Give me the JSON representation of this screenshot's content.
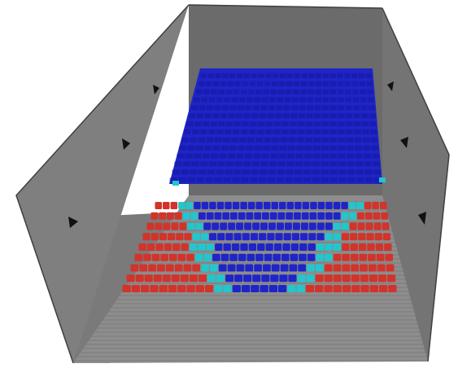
{
  "scene": {
    "subject": "auditorium-seating-model",
    "colors": {
      "background": "#ffffff",
      "wall_back": "#6b6b6b",
      "wall_left": "#7b7b7b",
      "wall_right": "#737373",
      "floor": "#8c8c8c",
      "floor_stripe": "#7a7a7a",
      "edge": "#3a3a3a",
      "seat_blue": "#1f24c8",
      "seat_blue_dark": "#14179a",
      "seat_red": "#d2332a",
      "seat_red_dark": "#9c1f1a",
      "seat_cyan": "#22c6cc",
      "marker": "#111111"
    },
    "sections": [
      {
        "name": "upper-tier",
        "color": "blue"
      },
      {
        "name": "lower-tier-center",
        "color": "blue"
      },
      {
        "name": "lower-tier-sides",
        "color": "red"
      },
      {
        "name": "lower-tier-aisle-band",
        "color": "cyan"
      }
    ],
    "icons": [
      "speaker-marker-icon"
    ]
  }
}
